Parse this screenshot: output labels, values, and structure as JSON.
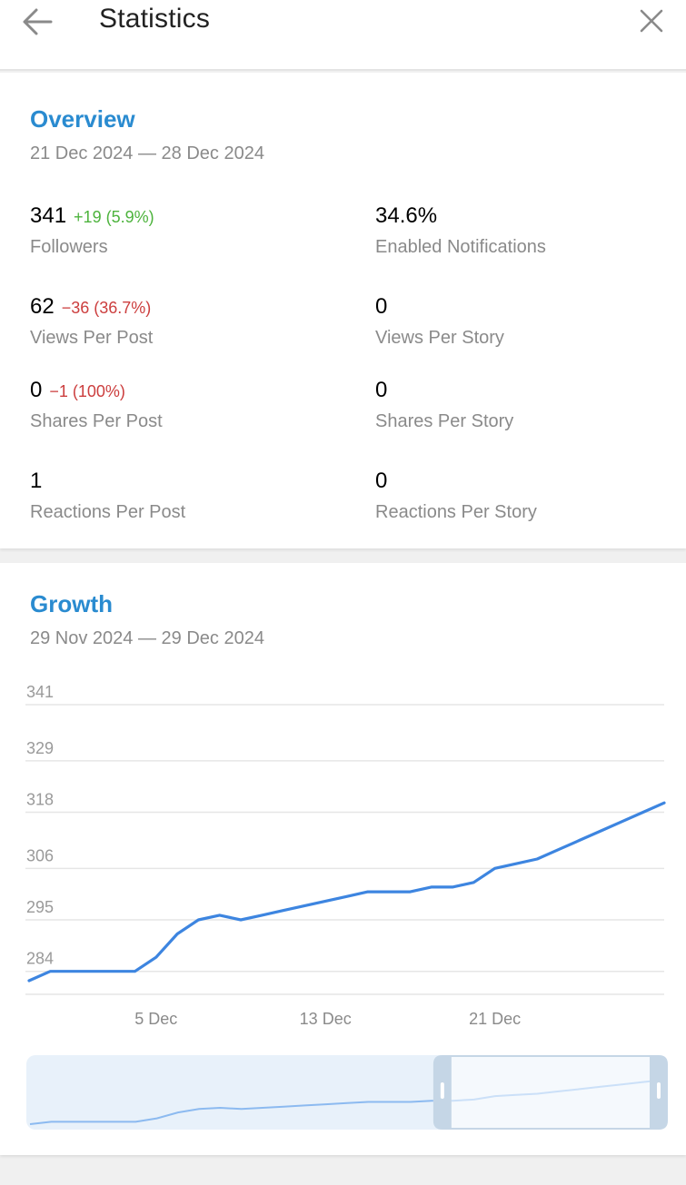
{
  "header": {
    "title": "Statistics",
    "back_icon": "arrow-left-icon",
    "close_icon": "close-icon"
  },
  "overview": {
    "title": "Overview",
    "date_range": "21 Dec 2024 — 28 Dec 2024",
    "stats": [
      {
        "value": "341",
        "delta": "+19 (5.9%)",
        "delta_dir": "up",
        "label": "Followers"
      },
      {
        "value": "34.6%",
        "delta": "",
        "delta_dir": "",
        "label": "Enabled Notifications"
      },
      {
        "value": "62",
        "delta": "−36 (36.7%)",
        "delta_dir": "down",
        "label": "Views Per Post"
      },
      {
        "value": "0",
        "delta": "",
        "delta_dir": "",
        "label": "Views Per Story"
      },
      {
        "value": "0",
        "delta": "−1 (100%)",
        "delta_dir": "down",
        "label": "Shares Per Post"
      },
      {
        "value": "0",
        "delta": "",
        "delta_dir": "",
        "label": "Shares Per Story"
      },
      {
        "value": "1",
        "delta": "",
        "delta_dir": "",
        "label": "Reactions Per Post"
      },
      {
        "value": "0",
        "delta": "",
        "delta_dir": "",
        "label": "Reactions Per Story"
      }
    ]
  },
  "growth": {
    "title": "Growth",
    "date_range": "29 Nov 2024 — 29 Dec 2024"
  },
  "colors": {
    "accent": "#2a8bd0",
    "line": "#3d85e0",
    "positive": "#4db33d",
    "negative": "#cc3e3e"
  },
  "chart_data": {
    "type": "line",
    "x": [
      "29 Nov",
      "30 Nov",
      "1 Dec",
      "2 Dec",
      "3 Dec",
      "4 Dec",
      "5 Dec",
      "6 Dec",
      "7 Dec",
      "8 Dec",
      "9 Dec",
      "10 Dec",
      "11 Dec",
      "12 Dec",
      "13 Dec",
      "14 Dec",
      "15 Dec",
      "16 Dec",
      "17 Dec",
      "18 Dec",
      "19 Dec",
      "20 Dec",
      "21 Dec",
      "22 Dec",
      "23 Dec",
      "24 Dec",
      "25 Dec",
      "26 Dec",
      "27 Dec",
      "28 Dec",
      "29 Dec"
    ],
    "series": [
      {
        "values": [
          282,
          284,
          284,
          284,
          284,
          284,
          287,
          292,
          295,
          296,
          295,
          296,
          297,
          298,
          299,
          300,
          301,
          301,
          301,
          302,
          302,
          303,
          306,
          307,
          308,
          310,
          312,
          314,
          316,
          318,
          320
        ]
      }
    ],
    "y_tick_labels": [
      "341",
      "329",
      "318",
      "306",
      "295",
      "284"
    ],
    "x_tick_labels": [
      "5 Dec",
      "13 Dec",
      "21 Dec"
    ],
    "ylim": [
      282,
      341
    ],
    "grid": true,
    "navigator_window": [
      0.64,
      1.0
    ]
  }
}
